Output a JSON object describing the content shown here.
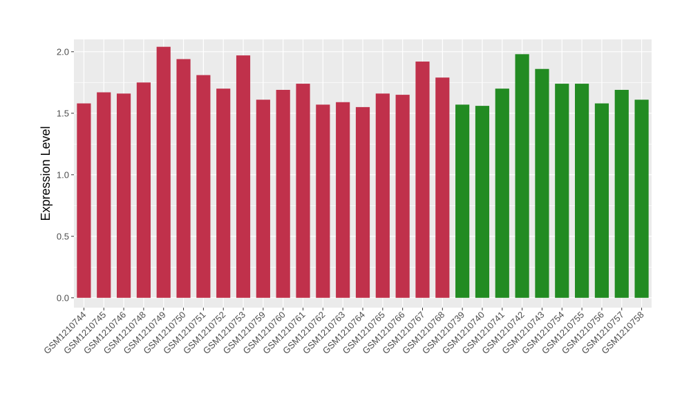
{
  "chart_data": {
    "type": "bar",
    "ylabel": "Expression Level",
    "xlabel": "",
    "ylim": [
      -0.08,
      2.1
    ],
    "yticks": [
      0.0,
      0.5,
      1.0,
      1.5,
      2.0
    ],
    "ytick_labels": [
      "0.0",
      "0.5",
      "1.0",
      "1.5",
      "2.0"
    ],
    "grid": true,
    "panel_background": "#EBEBEB",
    "grid_color": "#FFFFFF",
    "categories": [
      "GSM1210744",
      "GSM1210745",
      "GSM1210746",
      "GSM1210748",
      "GSM1210749",
      "GSM1210750",
      "GSM1210751",
      "GSM1210752",
      "GSM1210753",
      "GSM1210759",
      "GSM1210760",
      "GSM1210761",
      "GSM1210762",
      "GSM1210763",
      "GSM1210764",
      "GSM1210765",
      "GSM1210766",
      "GSM1210767",
      "GSM1210768",
      "GSM1210739",
      "GSM1210740",
      "GSM1210741",
      "GSM1210742",
      "GSM1210743",
      "GSM1210754",
      "GSM1210755",
      "GSM1210756",
      "GSM1210757",
      "GSM1210758"
    ],
    "values": [
      1.58,
      1.67,
      1.66,
      1.75,
      2.04,
      1.94,
      1.81,
      1.7,
      1.97,
      1.61,
      1.69,
      1.74,
      1.57,
      1.59,
      1.55,
      1.66,
      1.65,
      1.92,
      1.79,
      1.57,
      1.56,
      1.7,
      1.98,
      1.86,
      1.74,
      1.74,
      1.58,
      1.69,
      1.61
    ],
    "colors": [
      "#C0314B",
      "#C0314B",
      "#C0314B",
      "#C0314B",
      "#C0314B",
      "#C0314B",
      "#C0314B",
      "#C0314B",
      "#C0314B",
      "#C0314B",
      "#C0314B",
      "#C0314B",
      "#C0314B",
      "#C0314B",
      "#C0314B",
      "#C0314B",
      "#C0314B",
      "#C0314B",
      "#C0314B",
      "#228B22",
      "#228B22",
      "#228B22",
      "#228B22",
      "#228B22",
      "#228B22",
      "#228B22",
      "#228B22",
      "#228B22",
      "#228B22"
    ]
  }
}
